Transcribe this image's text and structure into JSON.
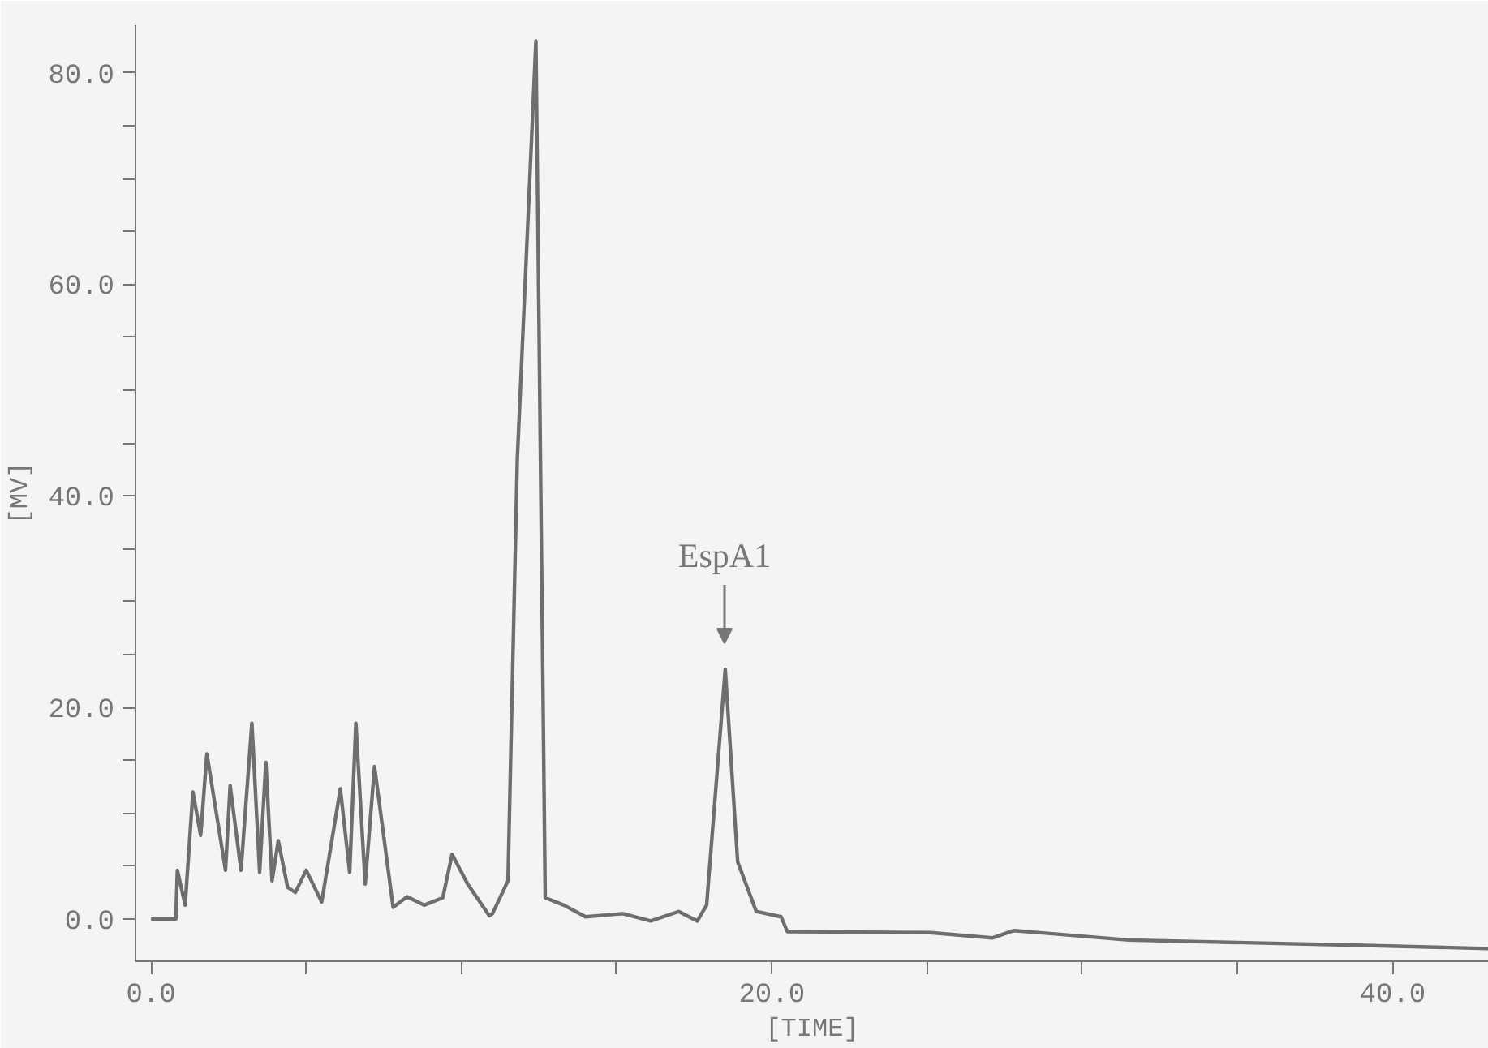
{
  "chart_data": {
    "type": "line",
    "xlabel": "[TIME]",
    "ylabel": "[MV]",
    "x": [
      0,
      0.8,
      0.85,
      1.1,
      1.35,
      1.6,
      1.8,
      2.4,
      2.55,
      2.9,
      3.25,
      3.5,
      3.7,
      3.9,
      4.1,
      4.4,
      4.65,
      5.0,
      5.5,
      6.1,
      6.4,
      6.6,
      6.9,
      7.2,
      7.8,
      8.25,
      8.8,
      9.4,
      9.7,
      10.2,
      10.9,
      11.0,
      11.5,
      11.8,
      12.4,
      12.7,
      13.3,
      14.0,
      15.2,
      16.1,
      17.0,
      17.6,
      17.9,
      18.5,
      18.9,
      19.5,
      20.3,
      20.5,
      25.1,
      27.1,
      27.8,
      31.5,
      39.1,
      43.1
    ],
    "series": [
      {
        "color": "#6e6e6e",
        "values": [
          0,
          0,
          4.6,
          1.3,
          12,
          7.9,
          15.6,
          4.6,
          12.6,
          4.6,
          18.5,
          4.4,
          14.8,
          3.6,
          7.4,
          3.0,
          2.5,
          4.6,
          1.6,
          12.3,
          4.4,
          18.5,
          3.3,
          14.4,
          1.1,
          2.1,
          1.3,
          2.0,
          6.1,
          3.3,
          0.3,
          0.5,
          3.6,
          43.4,
          83,
          2.0,
          1.3,
          0.2,
          0.5,
          -0.2,
          0.7,
          -0.2,
          1.3,
          23.6,
          5.4,
          0.7,
          0.2,
          -1.2,
          -1.3,
          -1.8,
          -1.1,
          -2.0,
          -2.5,
          -2.8
        ]
      }
    ],
    "xlim": [
      -0.5,
      43.1
    ],
    "ylim": [
      -4,
      84.5
    ],
    "xticks": [
      {
        "value": 0,
        "label": "0.0"
      },
      {
        "value": 5,
        "label": null
      },
      {
        "value": 10,
        "label": null
      },
      {
        "value": 15,
        "label": null
      },
      {
        "value": 20,
        "label": "20.0"
      },
      {
        "value": 25,
        "label": null
      },
      {
        "value": 30,
        "label": null
      },
      {
        "value": 35,
        "label": null
      },
      {
        "value": 40,
        "label": "40.0"
      }
    ],
    "yticks": [
      {
        "value": 0,
        "label": "0.0"
      },
      {
        "value": 5,
        "label": null
      },
      {
        "value": 10,
        "label": null
      },
      {
        "value": 15,
        "label": null
      },
      {
        "value": 20,
        "label": "20.0"
      },
      {
        "value": 25,
        "label": null
      },
      {
        "value": 30,
        "label": null
      },
      {
        "value": 35,
        "label": null
      },
      {
        "value": 40,
        "label": "40.0"
      },
      {
        "value": 45,
        "label": null
      },
      {
        "value": 50,
        "label": null
      },
      {
        "value": 55,
        "label": null
      },
      {
        "value": 60,
        "label": "60.0"
      },
      {
        "value": 65,
        "label": null
      },
      {
        "value": 70,
        "label": null
      },
      {
        "value": 75,
        "label": null
      },
      {
        "value": 80,
        "label": "80.0"
      }
    ],
    "annotations": [
      "EspA1"
    ],
    "line_style": "solid",
    "marker": "none"
  }
}
